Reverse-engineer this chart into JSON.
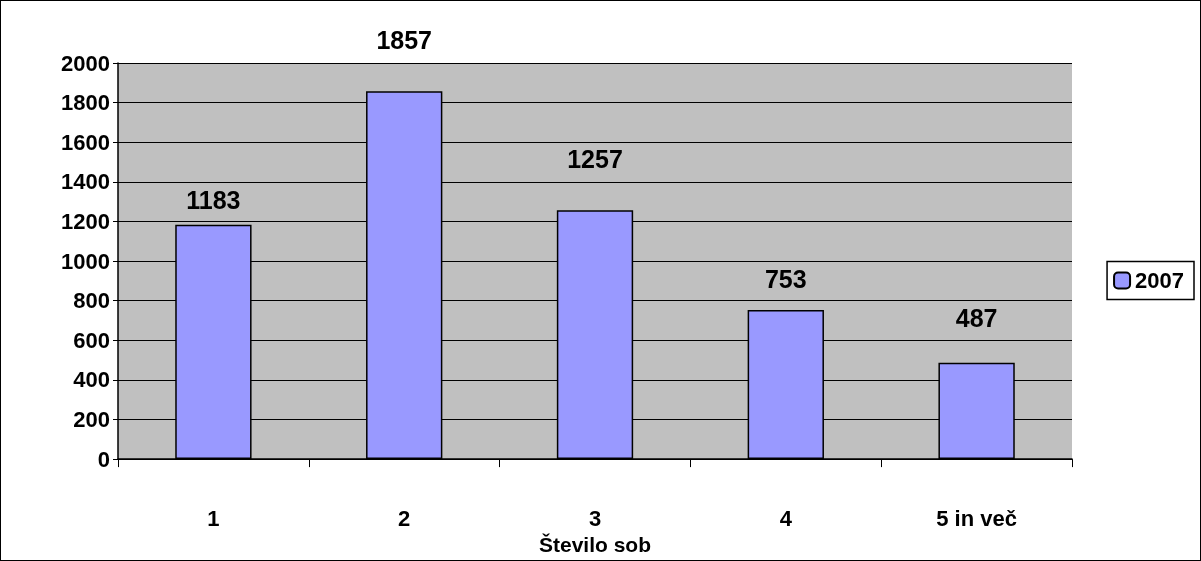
{
  "chart_data": {
    "type": "bar",
    "xlabel": "Število sob",
    "categories": [
      "1",
      "2",
      "3",
      "4",
      "5 in več"
    ],
    "series": [
      {
        "name": "2007",
        "color": "#9999ff",
        "values": [
          1183,
          1857,
          1257,
          753,
          487
        ]
      }
    ],
    "ylim": [
      0,
      2000
    ],
    "yticks": [
      0,
      200,
      400,
      600,
      800,
      1000,
      1200,
      1400,
      1600,
      1800,
      2000
    ],
    "grid": "y",
    "legend": "right",
    "data_labels": true
  }
}
